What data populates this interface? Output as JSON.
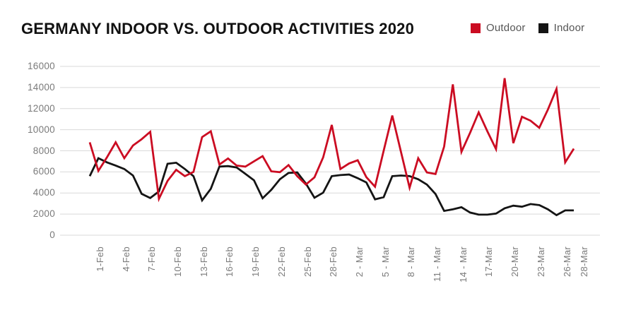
{
  "title": "GERMANY INDOOR VS. OUTDOOR ACTIVITIES 2020",
  "legend": [
    {
      "label": "Outdoor",
      "color": "#cb0c22"
    },
    {
      "label": "Indoor",
      "color": "#141414"
    }
  ],
  "chart_data": {
    "type": "line",
    "title": "GERMANY INDOOR VS. OUTDOOR ACTIVITIES 2020",
    "xlabel": "",
    "ylabel": "",
    "ylim": [
      0,
      16000
    ],
    "grid": true,
    "legend_position": "top-right",
    "yticks": [
      16000,
      14000,
      12000,
      10000,
      8000,
      6000,
      4000,
      2000,
      0
    ],
    "x": [
      "1-Feb",
      "2-Feb",
      "3-Feb",
      "4-Feb",
      "5-Feb",
      "6-Feb",
      "7-Feb",
      "8-Feb",
      "9-Feb",
      "10-Feb",
      "11-Feb",
      "12-Feb",
      "13-Feb",
      "14-Feb",
      "15-Feb",
      "16-Feb",
      "17-Feb",
      "18-Feb",
      "19-Feb",
      "20-Feb",
      "21-Feb",
      "22-Feb",
      "23-Feb",
      "24-Feb",
      "25-Feb",
      "26-Feb",
      "27-Feb",
      "28-Feb",
      "29-Feb",
      "1-Mar",
      "2-Mar",
      "3-Mar",
      "4-Mar",
      "5-Mar",
      "6-Mar",
      "7-Mar",
      "8-Mar",
      "9-Mar",
      "10-Mar",
      "11-Mar",
      "12-Mar",
      "13-Mar",
      "14-Mar",
      "15-Mar",
      "16-Mar",
      "17-Mar",
      "18-Mar",
      "19-Mar",
      "20-Mar",
      "21-Mar",
      "22-Mar",
      "23-Mar",
      "24-Mar",
      "25-Mar",
      "26-Mar",
      "27-Mar",
      "28-Mar"
    ],
    "xticks": [
      {
        "index": 0,
        "label": "1-Feb"
      },
      {
        "index": 3,
        "label": "4-Feb"
      },
      {
        "index": 6,
        "label": "7-Feb"
      },
      {
        "index": 9,
        "label": "10-Feb"
      },
      {
        "index": 12,
        "label": "13-Feb"
      },
      {
        "index": 15,
        "label": "16-Feb"
      },
      {
        "index": 18,
        "label": "19-Feb"
      },
      {
        "index": 21,
        "label": "22-Feb"
      },
      {
        "index": 24,
        "label": "25-Feb"
      },
      {
        "index": 27,
        "label": "28-Feb"
      },
      {
        "index": 30,
        "label": "2 - Mar"
      },
      {
        "index": 33,
        "label": "5 - Mar"
      },
      {
        "index": 36,
        "label": "8 - Mar"
      },
      {
        "index": 39,
        "label": "11 - Mar"
      },
      {
        "index": 42,
        "label": "14 - Mar"
      },
      {
        "index": 45,
        "label": "17-Mar"
      },
      {
        "index": 48,
        "label": "20-Mar"
      },
      {
        "index": 51,
        "label": "23-Mar"
      },
      {
        "index": 54,
        "label": "26-Mar"
      },
      {
        "index": 56,
        "label": "28-Mar"
      }
    ],
    "series": [
      {
        "name": "Outdoor",
        "color": "#cb0c22",
        "values": [
          8800,
          6100,
          7400,
          8800,
          7300,
          8500,
          9100,
          9800,
          3450,
          5150,
          6200,
          5600,
          6000,
          9300,
          9850,
          6700,
          7270,
          6600,
          6500,
          7000,
          7490,
          6050,
          5970,
          6650,
          5600,
          4800,
          5480,
          7380,
          10450,
          6270,
          6800,
          7100,
          5500,
          4600,
          8000,
          11340,
          7900,
          4500,
          7300,
          5950,
          5800,
          8400,
          14300,
          7900,
          9700,
          11640,
          9840,
          8160,
          14880,
          8720,
          11230,
          10850,
          10180,
          11900,
          13870,
          6900,
          8200
        ]
      },
      {
        "name": "Indoor",
        "color": "#141414",
        "values": [
          5600,
          7300,
          6900,
          6600,
          6270,
          5660,
          3920,
          3520,
          4150,
          6770,
          6870,
          6270,
          5600,
          3300,
          4400,
          6500,
          6550,
          6420,
          5820,
          5200,
          3500,
          4300,
          5300,
          5900,
          5950,
          4900,
          3550,
          4030,
          5600,
          5700,
          5750,
          5400,
          5000,
          3400,
          3600,
          5600,
          5660,
          5600,
          5300,
          4800,
          3900,
          2300,
          2450,
          2650,
          2150,
          1950,
          1950,
          2050,
          2550,
          2800,
          2700,
          2950,
          2850,
          2450,
          1900,
          2350,
          2350
        ]
      }
    ]
  }
}
